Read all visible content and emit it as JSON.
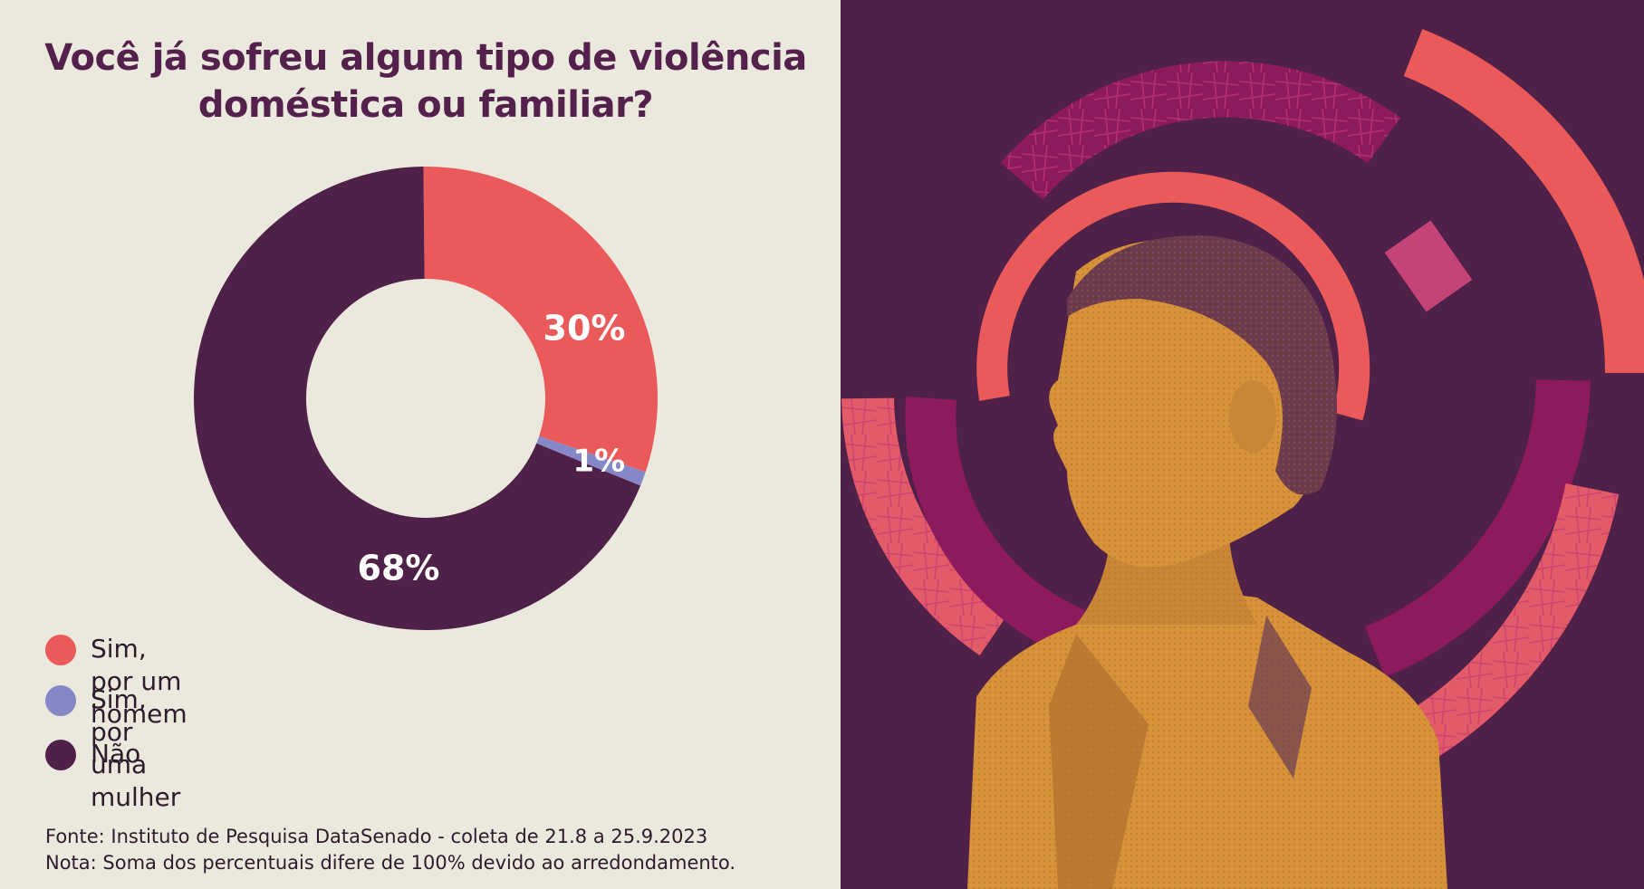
{
  "chart_data": {
    "type": "pie",
    "title": "Você já sofreu algum tipo de violência doméstica ou familiar?",
    "categories": [
      "Sim, por um homem",
      "Sim, por uma mulher",
      "Não"
    ],
    "values": [
      30,
      1,
      68
    ],
    "value_labels": [
      "30%",
      "1%",
      "68%"
    ],
    "colors": [
      "#ea5a5a",
      "#8587c6",
      "#4f2048"
    ],
    "donut": true,
    "legend_placement": "bottom-left"
  },
  "notes": {
    "source": "Fonte: Instituto de Pesquisa DataSenado - coleta de 21.8 a 25.9.2023",
    "note": "Nota: Soma dos percentuais difere de 100% devido ao arredondamento."
  },
  "illustration": {
    "subject": "woman-portrait-icon",
    "colors": {
      "background": "#4f2048",
      "coral": "#ea5a5a",
      "magenta": "#8c1a5c",
      "ochre": "#dc9a3c"
    }
  }
}
